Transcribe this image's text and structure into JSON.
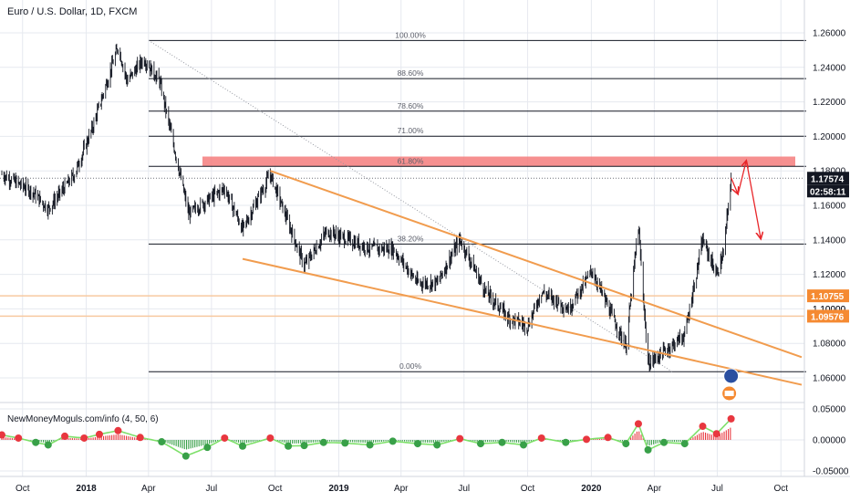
{
  "header": {
    "title": "Euro / U.S. Dollar, 1D, FXCM"
  },
  "indicator": {
    "label": "NewMoneyMoguls.com/info (4, 50, 6)"
  },
  "colors": {
    "bull_candle": "#131722",
    "grid_line": "#e6e9ef",
    "fib_line": "#131722",
    "trend_line": "#f19c4e",
    "resistance_zone": "#f47c7c",
    "support_line": "#f8c9a0",
    "arrow": "#e8262a",
    "price_badge": "#131722",
    "support_badge": "#f58a32",
    "osc_up": "#e8373f",
    "osc_down": "#38a048",
    "osc_smooth": "#7ee06a"
  },
  "chart_data": [
    {
      "type": "candlestick",
      "title": "Euro / U.S. Dollar, 1D, FXCM",
      "xlabel": "",
      "ylabel": "",
      "x_ticks": [
        "Oct",
        "2018",
        "Apr",
        "Jul",
        "Oct",
        "2019",
        "Apr",
        "Jul",
        "Oct",
        "2020",
        "Apr",
        "Jul",
        "Oct"
      ],
      "ylim": [
        1.045,
        1.27
      ],
      "y_ticks": [
        "1.26000",
        "1.24000",
        "1.22000",
        "1.20000",
        "1.18000",
        "1.16000",
        "1.14000",
        "1.12000",
        "1.10000",
        "1.08000",
        "1.06000"
      ],
      "price_path": {
        "x": [
          "2017-09-01",
          "2017-10-15",
          "2017-11-07",
          "2017-12-15",
          "2018-01-10",
          "2018-02-16",
          "2018-03-01",
          "2018-03-25",
          "2018-04-17",
          "2018-05-29",
          "2018-06-15",
          "2018-07-20",
          "2018-08-15",
          "2018-09-24",
          "2018-11-12",
          "2018-12-15",
          "2019-01-15",
          "2019-02-15",
          "2019-03-20",
          "2019-04-25",
          "2019-05-23",
          "2019-06-25",
          "2019-07-10",
          "2019-08-01",
          "2019-09-03",
          "2019-10-01",
          "2019-10-21",
          "2019-11-29",
          "2020-01-02",
          "2020-02-20",
          "2020-03-09",
          "2020-03-23",
          "2020-04-24",
          "2020-05-15",
          "2020-06-10",
          "2020-06-30",
          "2020-07-10",
          "2020-07-21"
        ],
        "y": [
          1.178,
          1.168,
          1.158,
          1.178,
          1.205,
          1.252,
          1.232,
          1.245,
          1.232,
          1.155,
          1.16,
          1.17,
          1.146,
          1.178,
          1.125,
          1.145,
          1.14,
          1.135,
          1.135,
          1.115,
          1.115,
          1.14,
          1.128,
          1.11,
          1.095,
          1.09,
          1.11,
          1.1,
          1.122,
          1.078,
          1.148,
          1.068,
          1.078,
          1.085,
          1.14,
          1.12,
          1.132,
          1.176
        ]
      },
      "current_price": "1.17574",
      "countdown": "02:58:11",
      "horizontal_lines": [
        {
          "label": "1.10755",
          "y": 1.10755
        },
        {
          "label": "1.09576",
          "y": 1.09576
        }
      ],
      "hidden_tick": "1.10000",
      "fibonacci": {
        "levels": [
          {
            "label": "100.00%",
            "y": 1.2556
          },
          {
            "label": "88.60%",
            "y": 1.2335
          },
          {
            "label": "78.60%",
            "y": 1.2146
          },
          {
            "label": "71.00%",
            "y": 1.2001
          },
          {
            "label": "61.80%",
            "y": 1.1826
          },
          {
            "label": "38.20%",
            "y": 1.1376
          },
          {
            "label": "0.00%",
            "y": 1.0636
          }
        ]
      },
      "resistance_zone": {
        "y_top": 1.1883,
        "y_bottom": 1.1826
      },
      "trend_lines": [
        {
          "from": {
            "x": "2018-09-24",
            "y": 1.18
          },
          "to": {
            "x": "2020-10-31",
            "y": 1.072
          }
        },
        {
          "from": {
            "x": "2018-08-15",
            "y": 1.129
          },
          "to": {
            "x": "2020-10-31",
            "y": 1.056
          }
        }
      ],
      "projection_arrows": [
        {
          "from": {
            "x": "2020-07-21",
            "y": 1.176
          },
          "to": {
            "x": "2020-07-31",
            "y": 1.1665
          }
        },
        {
          "from": {
            "x": "2020-07-31",
            "y": 1.1665
          },
          "to": {
            "x": "2020-08-12",
            "y": 1.186
          }
        },
        {
          "from": {
            "x": "2020-08-12",
            "y": 1.186
          },
          "to": {
            "x": "2020-09-02",
            "y": 1.1405
          }
        }
      ]
    },
    {
      "type": "line",
      "title": "NewMoneyMoguls.com/info (4, 50, 6)",
      "ylim": [
        -0.06,
        0.06
      ],
      "y_ticks": [
        "0.05000",
        "0.00000",
        "-0.05000"
      ],
      "series": [
        {
          "x": [
            "2017-09-01",
            "2017-09-25",
            "2017-10-20",
            "2017-11-07",
            "2017-12-01",
            "2017-12-29",
            "2018-01-20",
            "2018-02-16",
            "2018-03-20",
            "2018-04-20",
            "2018-05-25",
            "2018-06-25",
            "2018-07-20",
            "2018-08-15",
            "2018-09-24",
            "2018-10-20",
            "2018-11-12",
            "2018-12-10",
            "2019-01-10",
            "2019-02-15",
            "2019-03-20",
            "2019-04-25",
            "2019-05-23",
            "2019-06-25",
            "2019-07-25",
            "2019-08-25",
            "2019-09-25",
            "2019-10-21",
            "2019-11-25",
            "2019-12-25",
            "2020-01-25",
            "2020-02-20",
            "2020-03-09",
            "2020-03-23",
            "2020-04-15",
            "2020-05-15",
            "2020-06-10",
            "2020-06-30",
            "2020-07-21"
          ],
          "values": [
            0.008,
            0.003,
            -0.004,
            -0.008,
            0.006,
            0.003,
            0.009,
            0.015,
            0.004,
            -0.003,
            -0.026,
            -0.012,
            0.003,
            -0.01,
            0.003,
            -0.01,
            -0.009,
            -0.004,
            -0.005,
            -0.008,
            -0.002,
            -0.006,
            -0.008,
            0.002,
            -0.006,
            -0.004,
            -0.008,
            0.003,
            -0.004,
            0.001,
            0.004,
            -0.006,
            0.026,
            -0.016,
            -0.004,
            -0.006,
            0.022,
            0.01,
            0.034
          ]
        }
      ]
    }
  ]
}
